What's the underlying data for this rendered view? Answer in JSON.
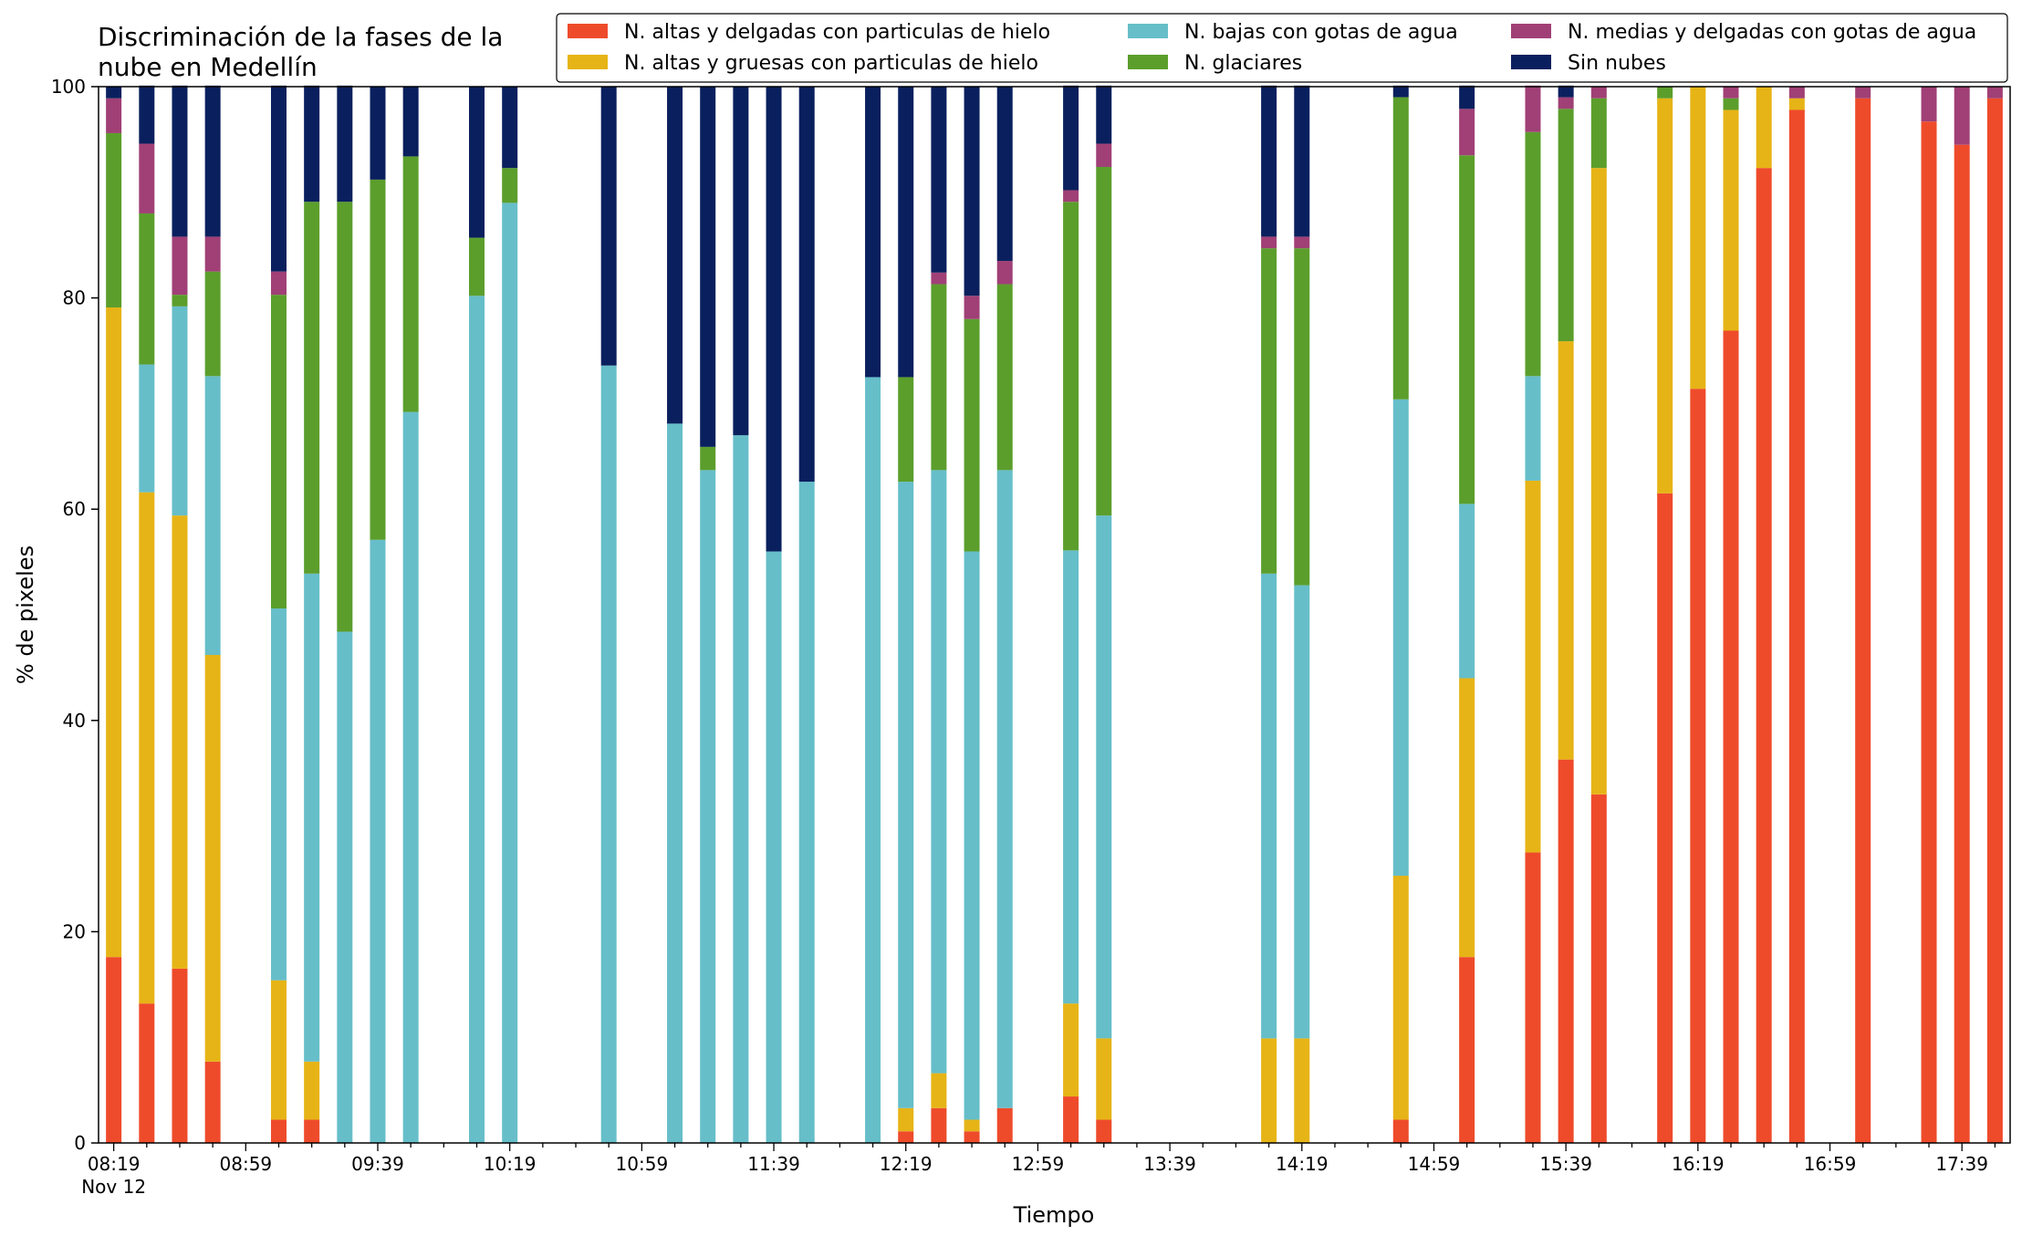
{
  "chart_data": {
    "type": "bar",
    "stacked": true,
    "title_lines": [
      "Discriminación de la fases de la",
      "nube en Medellín"
    ],
    "xlabel": "Tiempo",
    "ylabel": "% de pixeles",
    "ylim": [
      0,
      100
    ],
    "yticks": [
      0,
      20,
      40,
      60,
      80,
      100
    ],
    "x_tick_labels": [
      "08:19",
      "08:59",
      "09:39",
      "10:19",
      "10:59",
      "11:39",
      "12:19",
      "12:59",
      "13:39",
      "14:19",
      "14:59",
      "15:39",
      "16:19",
      "16:59",
      "17:39"
    ],
    "x_sub_label": "Nov 12",
    "grid": false,
    "legend_position": "top-right",
    "x": [
      "08:19",
      "08:29",
      "08:39",
      "08:49",
      "09:09",
      "09:19",
      "09:29",
      "09:39",
      "09:49",
      "10:09",
      "10:19",
      "10:49",
      "11:09",
      "11:19",
      "11:29",
      "11:39",
      "11:49",
      "12:09",
      "12:19",
      "12:29",
      "12:39",
      "12:49",
      "13:09",
      "13:19",
      "14:09",
      "14:19",
      "14:49",
      "15:09",
      "15:29",
      "15:39",
      "15:49",
      "16:09",
      "16:19",
      "16:29",
      "16:39",
      "16:49",
      "17:09",
      "17:29",
      "17:39",
      "17:49"
    ],
    "series": [
      {
        "name": "N. altas y delgadas con particulas de hielo",
        "color": "#ee4b2b",
        "values": [
          17.6,
          13.2,
          16.5,
          7.7,
          2.2,
          2.2,
          0,
          0,
          0,
          0,
          0,
          0,
          0,
          0,
          0,
          0,
          0,
          0,
          1.1,
          3.3,
          1.1,
          3.3,
          4.4,
          2.2,
          0,
          0,
          2.2,
          17.6,
          27.5,
          36.3,
          33.0,
          61.5,
          71.4,
          76.9,
          92.3,
          97.8,
          98.9,
          96.7,
          94.5,
          98.9
        ]
      },
      {
        "name": "N. altas y gruesas con particulas de hielo",
        "color": "#e6b416",
        "values": [
          61.5,
          48.4,
          42.9,
          38.5,
          13.2,
          5.5,
          0,
          0,
          0,
          0,
          0,
          0,
          0,
          0,
          0,
          0,
          0,
          0,
          2.2,
          3.3,
          1.1,
          0,
          8.8,
          7.7,
          9.9,
          9.9,
          23.1,
          26.4,
          35.2,
          39.6,
          59.3,
          37.4,
          28.6,
          20.9,
          7.7,
          1.1,
          0,
          0,
          0,
          0
        ]
      },
      {
        "name": "N. bajas con gotas de agua",
        "color": "#66bec9",
        "values": [
          0,
          12.1,
          19.8,
          26.4,
          35.2,
          46.2,
          48.4,
          57.1,
          69.2,
          80.2,
          89.0,
          73.6,
          68.1,
          63.7,
          67.0,
          56.0,
          62.6,
          72.5,
          59.3,
          57.1,
          53.8,
          60.4,
          42.9,
          49.5,
          44.0,
          42.9,
          45.1,
          16.5,
          9.9,
          0,
          0,
          0,
          0,
          0,
          0,
          0,
          0,
          0,
          0,
          0
        ]
      },
      {
        "name": "N. glaciares",
        "color": "#5b9e2c",
        "values": [
          16.5,
          14.3,
          1.1,
          9.9,
          29.7,
          35.2,
          40.7,
          34.1,
          24.2,
          5.5,
          3.3,
          0,
          0,
          2.2,
          0,
          0,
          0,
          0,
          9.9,
          17.6,
          22.0,
          17.6,
          33.0,
          33.0,
          30.8,
          31.9,
          28.6,
          33.0,
          23.1,
          22.0,
          6.6,
          1.1,
          0,
          1.1,
          0,
          0,
          0,
          0,
          0,
          0
        ]
      },
      {
        "name": "N. medias y delgadas con gotas de agua",
        "color": "#a04076",
        "values": [
          3.3,
          6.6,
          5.5,
          3.3,
          2.2,
          0,
          0,
          0,
          0,
          0,
          0,
          0,
          0,
          0,
          0,
          0,
          0,
          0,
          0,
          1.1,
          2.2,
          2.2,
          1.1,
          2.2,
          1.1,
          1.1,
          0,
          4.4,
          4.4,
          1.1,
          1.1,
          0,
          0,
          1.1,
          0,
          1.1,
          1.1,
          3.3,
          5.5,
          1.1
        ]
      },
      {
        "name": "Sin nubes",
        "color": "#0a205e",
        "values": [
          1.1,
          5.5,
          14.3,
          14.3,
          17.6,
          11.0,
          11.0,
          8.8,
          6.6,
          14.3,
          7.7,
          26.4,
          31.9,
          34.1,
          33.0,
          44.0,
          37.4,
          27.5,
          27.5,
          17.6,
          19.8,
          16.5,
          9.9,
          5.5,
          14.3,
          14.3,
          1.1,
          2.2,
          0,
          1.1,
          0,
          0,
          0,
          0,
          0,
          0,
          0,
          0,
          0,
          0
        ]
      }
    ]
  }
}
